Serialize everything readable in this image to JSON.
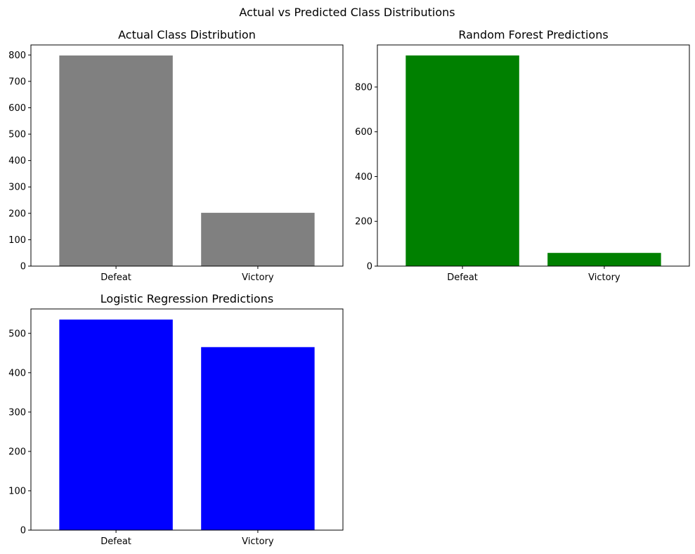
{
  "figure": {
    "suptitle": "Actual vs Predicted Class Distributions"
  },
  "chart_data": [
    {
      "type": "bar",
      "title": "Actual Class Distribution",
      "categories": [
        "Defeat",
        "Victory"
      ],
      "values": [
        798,
        202
      ],
      "color": "#808080",
      "ylim": [
        0,
        838
      ],
      "yticks": [
        0,
        100,
        200,
        300,
        400,
        500,
        600,
        700,
        800
      ],
      "xlabel": "",
      "ylabel": "",
      "grid": false
    },
    {
      "type": "bar",
      "title": "Random Forest Predictions",
      "categories": [
        "Defeat",
        "Victory"
      ],
      "values": [
        941,
        59
      ],
      "color": "#008000",
      "ylim": [
        0,
        988
      ],
      "yticks": [
        0,
        200,
        400,
        600,
        800
      ],
      "xlabel": "",
      "ylabel": "",
      "grid": false
    },
    {
      "type": "bar",
      "title": "Logistic Regression Predictions",
      "categories": [
        "Defeat",
        "Victory"
      ],
      "values": [
        535,
        465
      ],
      "color": "#0000ff",
      "ylim": [
        0,
        562
      ],
      "yticks": [
        0,
        100,
        200,
        300,
        400,
        500
      ],
      "xlabel": "",
      "ylabel": "",
      "grid": false
    }
  ]
}
